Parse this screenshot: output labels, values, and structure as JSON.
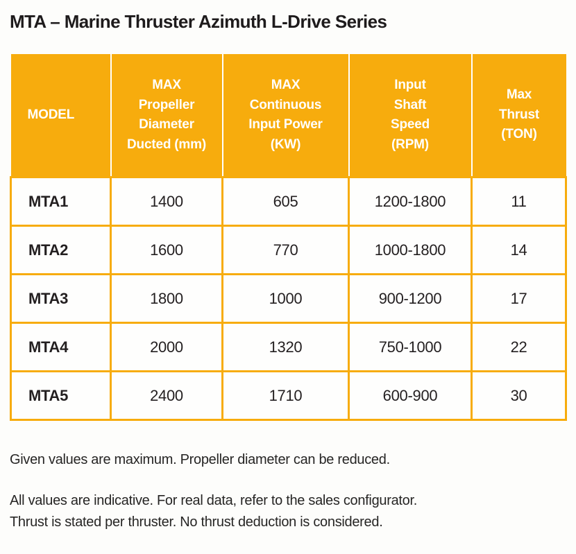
{
  "page": {
    "title": "MTA – Marine Thruster Azimuth L-Drive Series"
  },
  "colors": {
    "accent_orange": "#F7AC0D",
    "header_text": "#FFFFFF",
    "body_text": "#231F20",
    "background": "#FDFDFB"
  },
  "table": {
    "columns": [
      "MODEL",
      "MAX\nPropeller\nDiameter\nDucted (mm)",
      "MAX\nContinuous\nInput Power\n(KW)",
      "Input\nShaft\nSpeed\n(RPM)",
      "Max\nThrust\n(TON)"
    ],
    "rows": [
      {
        "model": "MTA1",
        "values": [
          "1400",
          "605",
          "1200-1800",
          "11"
        ]
      },
      {
        "model": "MTA2",
        "values": [
          "1600",
          "770",
          "1000-1800",
          "14"
        ]
      },
      {
        "model": "MTA3",
        "values": [
          "1800",
          "1000",
          "900-1200",
          "17"
        ]
      },
      {
        "model": "MTA4",
        "values": [
          "2000",
          "1320",
          "750-1000",
          "22"
        ]
      },
      {
        "model": "MTA5",
        "values": [
          "2400",
          "1710",
          "600-900",
          "30"
        ]
      }
    ]
  },
  "notes": {
    "note1": "Given values are maximum. Propeller diameter can be reduced.",
    "note2": "All values are indicative. For real data, refer to the sales configurator.\nThrust is stated per thruster. No thrust deduction is considered."
  }
}
